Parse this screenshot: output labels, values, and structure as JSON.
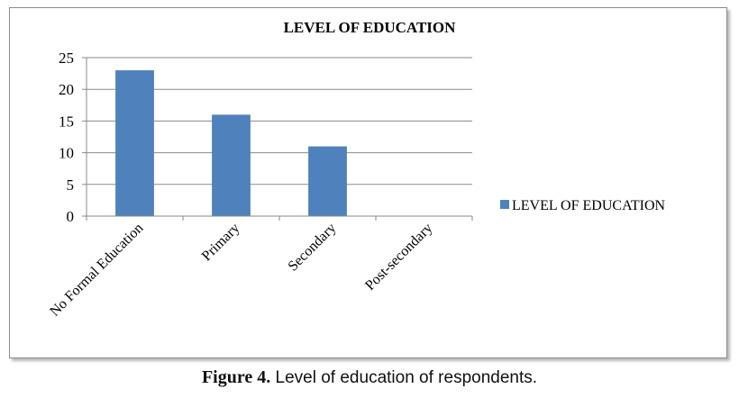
{
  "chart_data": {
    "type": "bar",
    "title": "LEVEL OF EDUCATION",
    "categories": [
      "No Formal Education",
      "Primary",
      "Secondary",
      "Post-secondary"
    ],
    "series": [
      {
        "name": "LEVEL OF EDUCATION",
        "values": [
          23,
          16,
          11,
          0
        ],
        "color": "#4F81BD"
      }
    ],
    "ylim": [
      0,
      25
    ],
    "yticks": [
      "0",
      "5",
      "10",
      "15",
      "20",
      "25"
    ],
    "grid": true,
    "legend": "right"
  },
  "caption": {
    "label": "Figure 4.",
    "text": " Level of education of respondents."
  }
}
